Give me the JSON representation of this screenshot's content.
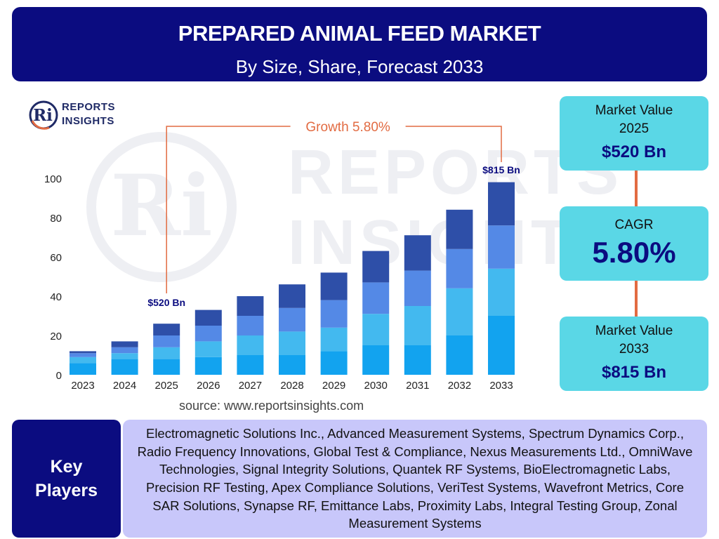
{
  "header": {
    "title": "PREPARED ANIMAL FEED MARKET",
    "subtitle": "By Size, Share, Forecast 2033"
  },
  "logo": {
    "letters": "Ri",
    "line1": "REPORTS",
    "line2": "INSIGHTS"
  },
  "watermark": {
    "letters": "Ri",
    "line1": "REPORTS",
    "line2": "INSIGHTS"
  },
  "chart_data": {
    "type": "bar",
    "stacked": true,
    "categories": [
      "2023",
      "2024",
      "2025",
      "2026",
      "2027",
      "2028",
      "2029",
      "2030",
      "2031",
      "2032",
      "2033"
    ],
    "series": [
      {
        "values": [
          6,
          8,
          8,
          9,
          10,
          10,
          12,
          15,
          15,
          20,
          30
        ]
      },
      {
        "values": [
          3,
          3,
          6,
          8,
          10,
          12,
          12,
          16,
          20,
          24,
          24
        ]
      },
      {
        "values": [
          2,
          3,
          6,
          8,
          10,
          12,
          14,
          16,
          18,
          20,
          22
        ]
      },
      {
        "values": [
          1,
          3,
          6,
          8,
          10,
          12,
          14,
          16,
          18,
          20,
          22
        ]
      }
    ],
    "colors": [
      "#12a3ef",
      "#43b9ef",
      "#5489e6",
      "#2e4fa8"
    ],
    "ylim": [
      0,
      100
    ],
    "yticks": [
      0,
      20,
      40,
      60,
      80,
      100
    ],
    "grid": false,
    "annotations": {
      "start_label": "$520 Bn",
      "end_label": "$815 Bn",
      "growth_label": "Growth  5.80%",
      "line_color": "#e26b42"
    }
  },
  "cards": {
    "value_2025": {
      "label": "Market Value 2025",
      "value": "$520 Bn"
    },
    "cagr": {
      "label": "CAGR",
      "value": "5.80%"
    },
    "value_2033": {
      "label": "Market Value 2033",
      "value": "$815 Bn"
    }
  },
  "source": "source: www.reportsinsights.com",
  "key_players": {
    "label": "Key Players",
    "text": "Electromagnetic Solutions Inc., Advanced Measurement Systems, Spectrum Dynamics Corp., Radio Frequency Innovations, Global Test & Compliance, Nexus Measurements Ltd., OmniWave Technologies, Signal Integrity Solutions, Quantek RF Systems, BioElectromagnetic Labs, Precision RF Testing, Apex Compliance Solutions, VeriTest Systems, Wavefront Metrics, Core SAR Solutions, Synapse RF, Emittance Labs, Proximity Labs, Integral Testing Group, Zonal Measurement Systems"
  }
}
